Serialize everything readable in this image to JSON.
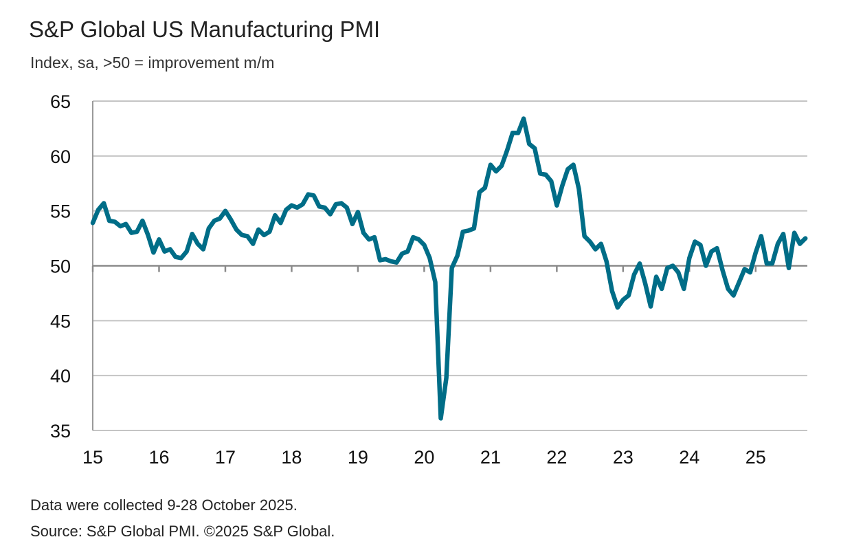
{
  "chart_data": {
    "type": "line",
    "title": "S&P Global US Manufacturing PMI",
    "subtitle": "Index, sa, >50 = improvement m/m",
    "xlabel": "",
    "ylabel": "",
    "ylim": [
      35,
      65
    ],
    "yticks": [
      "35",
      "40",
      "45",
      "50",
      "55",
      "60",
      "65"
    ],
    "xticks": [
      "15",
      "16",
      "17",
      "18",
      "19",
      "20",
      "21",
      "22",
      "23",
      "24",
      "25"
    ],
    "x_start": "2015-01",
    "x_end": "2025-10",
    "grid": true,
    "line_color": "#006d87",
    "series": [
      {
        "name": "S&P Global US Manufacturing PMI",
        "values": [
          53.9,
          55.1,
          55.7,
          54.1,
          54.0,
          53.6,
          53.8,
          53.0,
          53.1,
          54.1,
          52.8,
          51.2,
          52.4,
          51.3,
          51.5,
          50.8,
          50.7,
          51.3,
          52.9,
          52.0,
          51.5,
          53.4,
          54.1,
          54.3,
          55.0,
          54.2,
          53.3,
          52.8,
          52.7,
          52.0,
          53.3,
          52.8,
          53.1,
          54.6,
          53.9,
          55.1,
          55.5,
          55.3,
          55.6,
          56.5,
          56.4,
          55.4,
          55.3,
          54.7,
          55.6,
          55.7,
          55.3,
          53.8,
          54.9,
          53.0,
          52.4,
          52.6,
          50.5,
          50.6,
          50.4,
          50.3,
          51.1,
          51.3,
          52.6,
          52.4,
          51.9,
          50.7,
          48.5,
          36.1,
          39.8,
          49.8,
          50.9,
          53.1,
          53.2,
          53.4,
          56.7,
          57.1,
          59.2,
          58.6,
          59.1,
          60.5,
          62.1,
          62.1,
          63.4,
          61.1,
          60.7,
          58.4,
          58.3,
          57.7,
          55.5,
          57.3,
          58.8,
          59.2,
          57.0,
          52.7,
          52.2,
          51.5,
          52.0,
          50.4,
          47.7,
          46.2,
          46.9,
          47.3,
          49.2,
          50.2,
          48.4,
          46.3,
          49.0,
          47.9,
          49.8,
          50.0,
          49.4,
          47.9,
          50.7,
          52.2,
          51.9,
          50.0,
          51.3,
          51.6,
          49.6,
          47.9,
          47.3,
          48.5,
          49.7,
          49.4,
          51.2,
          52.7,
          50.2,
          50.2,
          52.0,
          52.9,
          49.8,
          53.0,
          52.0,
          52.5
        ]
      }
    ]
  },
  "footer": {
    "note": "Data were collected 9-28 October 2025.",
    "source": "Source: S&P Global PMI. ©2025 S&P Global."
  }
}
